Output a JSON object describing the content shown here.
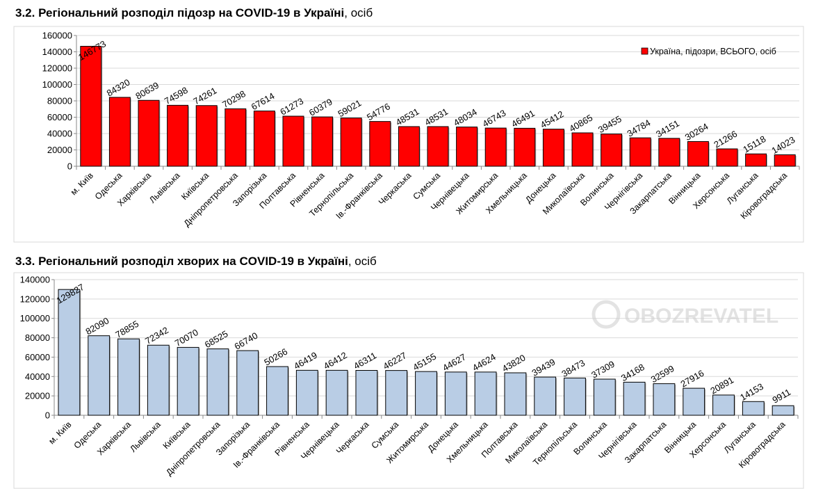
{
  "chart_data": [
    {
      "type": "bar",
      "title_bold": "3.2.  Регіональний розподіл підозр на COVID-19 в Україні",
      "title_rest": ", осіб",
      "ylim": [
        0,
        160000
      ],
      "yticks": [
        0,
        20000,
        40000,
        60000,
        80000,
        100000,
        120000,
        140000,
        160000
      ],
      "grid": true,
      "legend_position": "top-right",
      "color": "#ff0000",
      "categories": [
        "м. Київ",
        "Одеська",
        "Харківська",
        "Львівська",
        "Київська",
        "Дніпропетровська",
        "Запорізька",
        "Полтавська",
        "Рівненська",
        "Тернопільська",
        "Ів.-Франківська",
        "Черкаська",
        "Сумська",
        "Чернівецька",
        "Житомирська",
        "Хмельницька",
        "Донецька",
        "Миколаївська",
        "Волинська",
        "Чернігівська",
        "Закарпатська",
        "Вінницька",
        "Херсонська",
        "Луганська",
        "Кіровоградська"
      ],
      "series": [
        {
          "name": "Україна, підозри, ВСЬОГО, осіб",
          "values": [
            146773,
            84320,
            80639,
            74598,
            74261,
            70298,
            67614,
            61273,
            60379,
            59021,
            54776,
            48531,
            48531,
            48034,
            46743,
            46491,
            45412,
            40865,
            39455,
            34784,
            34151,
            30264,
            21266,
            15118,
            14023
          ]
        }
      ]
    },
    {
      "type": "bar",
      "title_bold": "3.3.  Регіональний розподіл хворих на COVID-19 в Україні",
      "title_rest": ", осіб",
      "ylim": [
        0,
        140000
      ],
      "yticks": [
        0,
        20000,
        40000,
        60000,
        80000,
        100000,
        120000,
        140000
      ],
      "grid": true,
      "color": "#b9cde5",
      "categories": [
        "м. Київ",
        "Одеська",
        "Харківська",
        "Львівська",
        "Київська",
        "Дніпропетровська",
        "Запорізька",
        "Ів.-Франківська",
        "Рівненська",
        "Чернівецька",
        "Черкаська",
        "Сумська",
        "Житомирська",
        "Донецька",
        "Хмельницька",
        "Полтавська",
        "Миколаївська",
        "Тернопільська",
        "Волинська",
        "Чернігівська",
        "Закарпатська",
        "Вінницька",
        "Херсонська",
        "Луганська",
        "Кіровоградська"
      ],
      "series": [
        {
          "values": [
            129827,
            82090,
            78855,
            72342,
            70070,
            68525,
            66740,
            50266,
            46419,
            46412,
            46311,
            46227,
            45155,
            44627,
            44624,
            43820,
            39439,
            38473,
            37309,
            34168,
            32599,
            27916,
            20891,
            14153,
            9911
          ]
        }
      ]
    }
  ],
  "watermark": "OBOZREVATEL"
}
